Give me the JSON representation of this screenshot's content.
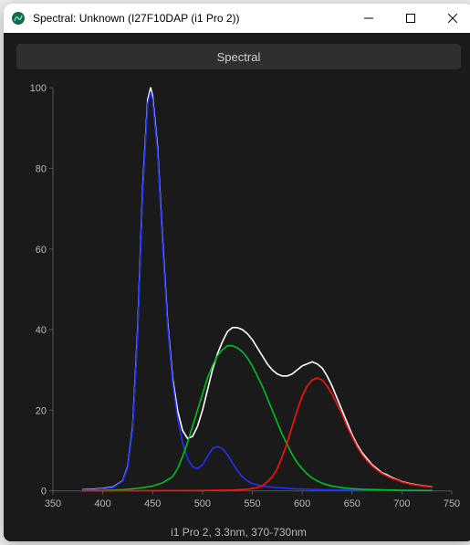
{
  "window": {
    "title": "Spectral: Unknown (I27F10DAP (i1 Pro 2))",
    "icon_name": "app-logo-icon"
  },
  "tab": {
    "label": "Spectral"
  },
  "chart": {
    "type": "line",
    "background_color": "#1a1a1a",
    "plot_bg": "#1a1a1a",
    "axis_color": "#555555",
    "tick_color": "#b8b8b8",
    "tick_fontsize": 11,
    "xlim": [
      350,
      750
    ],
    "ylim": [
      0,
      100
    ],
    "xtick_step": 50,
    "ytick_step": 20,
    "line_width": 1.6,
    "series": [
      {
        "name": "white",
        "color": "#ffffff",
        "data": [
          [
            380,
            0.3
          ],
          [
            390,
            0.4
          ],
          [
            400,
            0.6
          ],
          [
            410,
            0.9
          ],
          [
            420,
            2.5
          ],
          [
            425,
            6
          ],
          [
            430,
            16
          ],
          [
            435,
            40
          ],
          [
            440,
            75
          ],
          [
            445,
            97
          ],
          [
            448,
            100
          ],
          [
            450,
            98
          ],
          [
            455,
            85
          ],
          [
            460,
            62
          ],
          [
            465,
            42
          ],
          [
            470,
            28
          ],
          [
            475,
            20
          ],
          [
            480,
            15
          ],
          [
            485,
            13
          ],
          [
            490,
            13.5
          ],
          [
            495,
            16
          ],
          [
            500,
            20
          ],
          [
            505,
            25
          ],
          [
            510,
            30
          ],
          [
            515,
            34
          ],
          [
            520,
            37
          ],
          [
            525,
            39.5
          ],
          [
            530,
            40.5
          ],
          [
            535,
            40.5
          ],
          [
            540,
            40
          ],
          [
            545,
            39
          ],
          [
            550,
            37.5
          ],
          [
            555,
            35.5
          ],
          [
            560,
            33.5
          ],
          [
            565,
            31.5
          ],
          [
            570,
            30
          ],
          [
            575,
            29
          ],
          [
            580,
            28.5
          ],
          [
            585,
            28.5
          ],
          [
            590,
            29
          ],
          [
            595,
            30
          ],
          [
            600,
            31
          ],
          [
            605,
            31.5
          ],
          [
            610,
            32
          ],
          [
            615,
            31.5
          ],
          [
            620,
            30.5
          ],
          [
            625,
            28.5
          ],
          [
            630,
            26
          ],
          [
            635,
            23
          ],
          [
            640,
            20
          ],
          [
            645,
            17
          ],
          [
            650,
            14
          ],
          [
            655,
            11.5
          ],
          [
            660,
            9.5
          ],
          [
            665,
            8
          ],
          [
            670,
            6.5
          ],
          [
            675,
            5.5
          ],
          [
            680,
            4.5
          ],
          [
            685,
            4
          ],
          [
            690,
            3.3
          ],
          [
            695,
            2.8
          ],
          [
            700,
            2.3
          ],
          [
            710,
            1.7
          ],
          [
            720,
            1.3
          ],
          [
            730,
            1
          ]
        ]
      },
      {
        "name": "blue",
        "color": "#2030ff",
        "data": [
          [
            380,
            0.2
          ],
          [
            390,
            0.3
          ],
          [
            400,
            0.5
          ],
          [
            410,
            0.8
          ],
          [
            420,
            2.4
          ],
          [
            425,
            5.8
          ],
          [
            430,
            15.5
          ],
          [
            435,
            39
          ],
          [
            440,
            74
          ],
          [
            445,
            96
          ],
          [
            448,
            99
          ],
          [
            450,
            97
          ],
          [
            455,
            84
          ],
          [
            460,
            61
          ],
          [
            465,
            41
          ],
          [
            470,
            27
          ],
          [
            475,
            18
          ],
          [
            480,
            12
          ],
          [
            485,
            8
          ],
          [
            490,
            6
          ],
          [
            495,
            5.5
          ],
          [
            500,
            6.5
          ],
          [
            505,
            8.5
          ],
          [
            510,
            10.5
          ],
          [
            515,
            11
          ],
          [
            520,
            10.5
          ],
          [
            525,
            9
          ],
          [
            530,
            7
          ],
          [
            535,
            5
          ],
          [
            540,
            3.5
          ],
          [
            545,
            2.5
          ],
          [
            550,
            1.8
          ],
          [
            560,
            1.2
          ],
          [
            570,
            0.9
          ],
          [
            580,
            0.7
          ],
          [
            590,
            0.55
          ],
          [
            600,
            0.45
          ],
          [
            620,
            0.3
          ],
          [
            650,
            0.2
          ],
          [
            700,
            0.1
          ],
          [
            730,
            0.05
          ]
        ]
      },
      {
        "name": "green",
        "color": "#00c020",
        "data": [
          [
            380,
            0.05
          ],
          [
            400,
            0.1
          ],
          [
            420,
            0.3
          ],
          [
            430,
            0.5
          ],
          [
            440,
            0.8
          ],
          [
            450,
            1.2
          ],
          [
            460,
            2
          ],
          [
            470,
            3.5
          ],
          [
            475,
            5.5
          ],
          [
            480,
            8.5
          ],
          [
            485,
            12
          ],
          [
            490,
            16
          ],
          [
            495,
            20
          ],
          [
            500,
            24
          ],
          [
            505,
            28
          ],
          [
            510,
            31
          ],
          [
            515,
            33.5
          ],
          [
            520,
            35
          ],
          [
            525,
            36
          ],
          [
            530,
            36
          ],
          [
            535,
            35.5
          ],
          [
            540,
            34.5
          ],
          [
            545,
            33
          ],
          [
            550,
            31
          ],
          [
            555,
            28.5
          ],
          [
            560,
            26
          ],
          [
            565,
            23
          ],
          [
            570,
            20
          ],
          [
            575,
            17
          ],
          [
            580,
            14
          ],
          [
            585,
            11.5
          ],
          [
            590,
            9
          ],
          [
            595,
            7
          ],
          [
            600,
            5.5
          ],
          [
            605,
            4.2
          ],
          [
            610,
            3.2
          ],
          [
            615,
            2.5
          ],
          [
            620,
            1.9
          ],
          [
            625,
            1.5
          ],
          [
            630,
            1.2
          ],
          [
            640,
            0.8
          ],
          [
            650,
            0.55
          ],
          [
            660,
            0.4
          ],
          [
            680,
            0.25
          ],
          [
            700,
            0.15
          ],
          [
            730,
            0.08
          ]
        ]
      },
      {
        "name": "red",
        "color": "#ff1010",
        "data": [
          [
            380,
            0.02
          ],
          [
            450,
            0.05
          ],
          [
            500,
            0.1
          ],
          [
            530,
            0.2
          ],
          [
            545,
            0.4
          ],
          [
            555,
            0.8
          ],
          [
            560,
            1.3
          ],
          [
            565,
            2.2
          ],
          [
            570,
            3.5
          ],
          [
            575,
            5.5
          ],
          [
            580,
            8.5
          ],
          [
            585,
            12
          ],
          [
            590,
            16
          ],
          [
            595,
            20
          ],
          [
            600,
            23.5
          ],
          [
            605,
            26
          ],
          [
            610,
            27.5
          ],
          [
            615,
            28
          ],
          [
            620,
            27.5
          ],
          [
            625,
            26
          ],
          [
            630,
            24
          ],
          [
            635,
            21.5
          ],
          [
            640,
            19
          ],
          [
            645,
            16
          ],
          [
            650,
            13.5
          ],
          [
            655,
            11
          ],
          [
            660,
            9
          ],
          [
            665,
            7.5
          ],
          [
            670,
            6.2
          ],
          [
            675,
            5.2
          ],
          [
            680,
            4.3
          ],
          [
            685,
            3.7
          ],
          [
            690,
            3.1
          ],
          [
            695,
            2.7
          ],
          [
            700,
            2.2
          ],
          [
            710,
            1.6
          ],
          [
            720,
            1.25
          ],
          [
            730,
            0.95
          ]
        ]
      }
    ],
    "footer_label": "i1 Pro 2, 3.3nm, 370-730nm"
  }
}
